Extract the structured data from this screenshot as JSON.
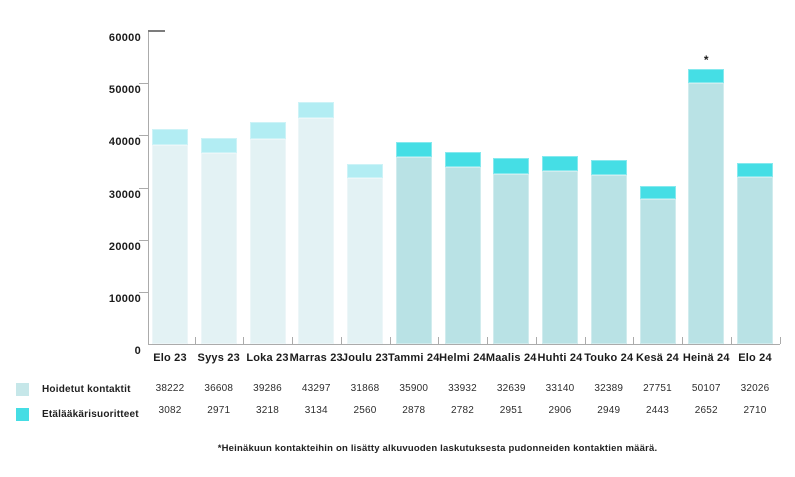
{
  "chart_data": {
    "type": "bar",
    "stacked": true,
    "title": "",
    "xlabel": "",
    "ylabel": "",
    "ylim": [
      0,
      60000
    ],
    "grid": false,
    "legend_position": "bottom-left",
    "y_tick_labels": [
      "0",
      "10000",
      "20000",
      "30000",
      "40000",
      "50000",
      "60000"
    ],
    "categories": [
      "Elo 23",
      "Syys 23",
      "Loka 23",
      "Marras 23",
      "Joulu 23",
      "Tammi 24",
      "Helmi 24",
      "Maalis 24",
      "Huhti 24",
      "Touko 24",
      "Kesä 24",
      "Heinä 24",
      "Elo 24"
    ],
    "series": [
      {
        "name": "Hoidetut kontaktit",
        "values": [
          38222,
          36608,
          39286,
          43297,
          31868,
          35900,
          33932,
          32639,
          33140,
          32389,
          27751,
          50107,
          32026
        ],
        "color_2023": "#e3f2f4",
        "color_2024": "#b9e2e5"
      },
      {
        "name": "Etälääkärisuoritteet",
        "values": [
          3082,
          2971,
          3218,
          3134,
          2560,
          2878,
          2782,
          2951,
          2906,
          2949,
          2443,
          2652,
          2710
        ],
        "color_2023": "#b2edf3",
        "color_2024": "#45dee5"
      }
    ],
    "annotations": [
      {
        "category": "Heinä 24",
        "marker": "*"
      }
    ]
  },
  "legend": {
    "items": [
      {
        "label": "Hoidetut kontaktit",
        "color": "#c6e7e9"
      },
      {
        "label": "Etälääkärisuoritteet",
        "color": "#45dde4"
      }
    ]
  },
  "footnote": "*Heinäkuun kontakteihin on lisätty alkuvuoden laskutuksesta pudonneiden kontaktien määrä."
}
